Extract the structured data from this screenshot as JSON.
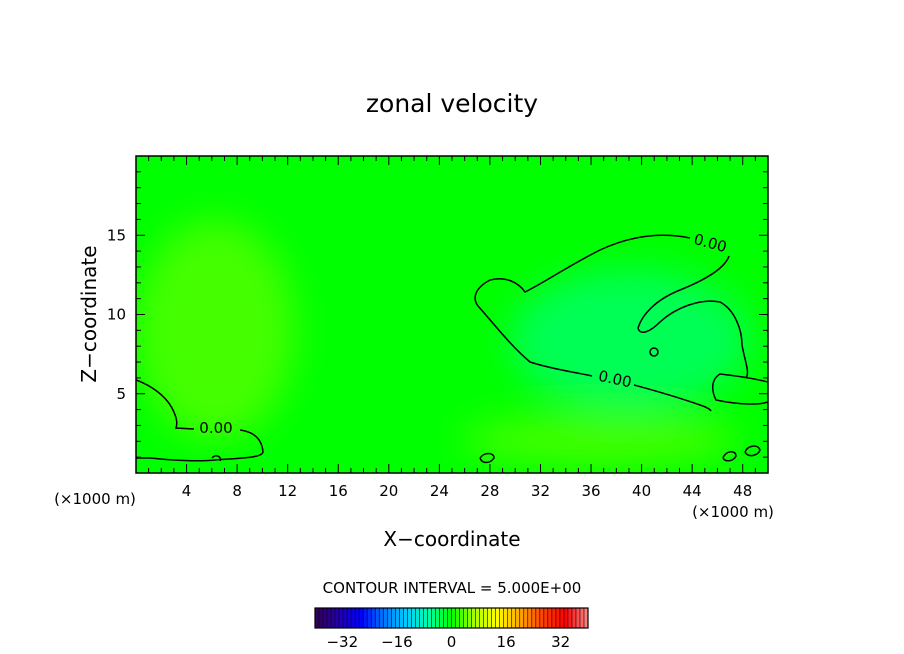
{
  "chart_data": {
    "type": "heatmap",
    "title": "zonal velocity",
    "xlabel": "X−coordinate",
    "ylabel": "Z−coordinate",
    "x_unit_left": "(×1000 m)",
    "x_unit_right": "(×1000 m)",
    "xlim": [
      0,
      50
    ],
    "ylim": [
      0,
      20
    ],
    "x_ticks": [
      4,
      8,
      12,
      16,
      20,
      24,
      28,
      32,
      36,
      40,
      44,
      48
    ],
    "y_ticks": [
      5,
      10,
      15
    ],
    "contour_interval_label": "CONTOUR INTERVAL = 5.000E+00",
    "contour_labels": [
      "0.00",
      "0.00",
      "0.00"
    ],
    "colorbar": {
      "range": [
        -40,
        40
      ],
      "ticks": [
        -32,
        -16,
        0,
        16,
        32
      ],
      "colors": [
        "#330055",
        "#2200aa",
        "#0000ff",
        "#0077ff",
        "#00ccff",
        "#00ffaa",
        "#00ff00",
        "#aaff00",
        "#ffff00",
        "#ffaa00",
        "#ff4400",
        "#ff0000",
        "#ff8888"
      ]
    },
    "field_colors": {
      "background": "#00ff00",
      "weak_positive": "#44ff00",
      "weak_negative": "#00ff55"
    }
  }
}
